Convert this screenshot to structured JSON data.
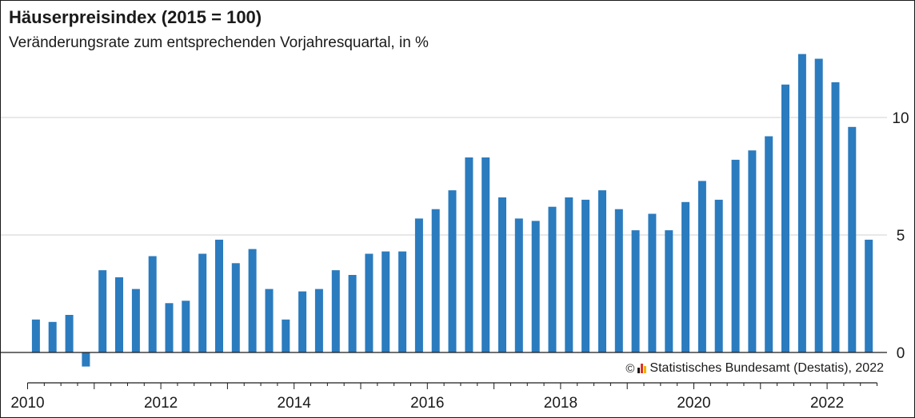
{
  "colors": {
    "bar": "#2b7bbf",
    "grid": "#d0d0d0",
    "axis": "#1a1a1a",
    "logo": [
      "#1a1a1a",
      "#e0312b",
      "#f0b400"
    ]
  },
  "source": {
    "copyright": "©",
    "logo_icon": "destatis-logo-icon",
    "text": "Statistisches Bundesamt (Destatis), 2022"
  },
  "chart_data": {
    "type": "bar",
    "title": "Häuserpreisindex (2015 = 100)",
    "subtitle": "Veränderungsrate zum entsprechenden Vorjahresquartal, in %",
    "xlim": [
      2010,
      2022.75
    ],
    "ylim": [
      -1.4,
      13
    ],
    "yticks": [
      0,
      5,
      10
    ],
    "xticks": [
      2010,
      2012,
      2014,
      2016,
      2018,
      2020,
      2022
    ],
    "grid": true,
    "legend": "none",
    "quarters": [
      "2010 Q1",
      "2010 Q2",
      "2010 Q3",
      "2010 Q4",
      "2011 Q1",
      "2011 Q2",
      "2011 Q3",
      "2011 Q4",
      "2012 Q1",
      "2012 Q2",
      "2012 Q3",
      "2012 Q4",
      "2013 Q1",
      "2013 Q2",
      "2013 Q3",
      "2013 Q4",
      "2014 Q1",
      "2014 Q2",
      "2014 Q3",
      "2014 Q4",
      "2015 Q1",
      "2015 Q2",
      "2015 Q3",
      "2015 Q4",
      "2016 Q1",
      "2016 Q2",
      "2016 Q3",
      "2016 Q4",
      "2017 Q1",
      "2017 Q2",
      "2017 Q3",
      "2017 Q4",
      "2018 Q1",
      "2018 Q2",
      "2018 Q3",
      "2018 Q4",
      "2019 Q1",
      "2019 Q2",
      "2019 Q3",
      "2019 Q4",
      "2020 Q1",
      "2020 Q2",
      "2020 Q3",
      "2020 Q4",
      "2021 Q1",
      "2021 Q2",
      "2021 Q3",
      "2021 Q4",
      "2022 Q1",
      "2022 Q2",
      "2022 Q3"
    ],
    "values": [
      1.4,
      1.3,
      1.6,
      -0.6,
      3.5,
      3.2,
      2.7,
      4.1,
      2.1,
      2.2,
      4.2,
      4.8,
      3.8,
      4.4,
      2.7,
      1.4,
      2.6,
      2.7,
      3.5,
      3.3,
      4.2,
      4.3,
      4.3,
      5.7,
      6.1,
      6.9,
      8.3,
      8.3,
      6.6,
      5.7,
      5.6,
      6.2,
      6.6,
      6.5,
      6.9,
      6.1,
      5.2,
      5.9,
      5.2,
      6.4,
      7.3,
      6.5,
      8.2,
      8.6,
      9.2,
      11.4,
      12.7,
      12.5,
      11.5,
      9.6,
      4.8
    ]
  }
}
